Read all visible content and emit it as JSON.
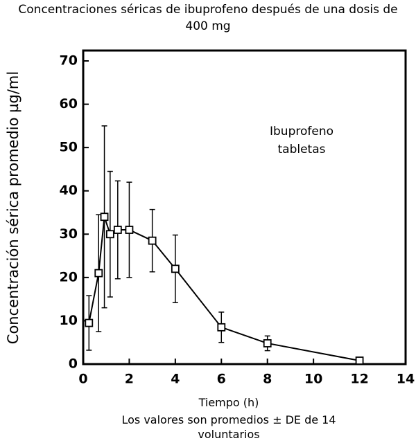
{
  "chart_data": {
    "type": "line",
    "title": "Concentraciones séricas de ibuprofeno después de una dosis de 400 mg",
    "y_label": "Concentración sérica promedio µg/ml",
    "x_label": "Tiempo (h)",
    "footnote": "Los valores son promedios ± DE de 14 voluntarios",
    "annotation": [
      "Ibuprofeno",
      "tabletas"
    ],
    "x": [
      0.25,
      0.67,
      0.92,
      1.17,
      1.5,
      2,
      3,
      4,
      6,
      8,
      12
    ],
    "series": [
      {
        "color": "#000000",
        "values": [
          9.5,
          21,
          34,
          30,
          31,
          31,
          28.5,
          22,
          8.5,
          4.8,
          0.8
        ],
        "errors": [
          6.3,
          13.5,
          21,
          14.5,
          11.3,
          11,
          7.2,
          7.8,
          3.5,
          1.7,
          0
        ]
      }
    ],
    "xlim": [
      0,
      14
    ],
    "xticks": [
      0,
      2,
      4,
      6,
      8,
      10,
      12,
      14
    ],
    "ylim": [
      0,
      72.4
    ],
    "yticks": [
      0,
      10,
      20,
      30,
      40,
      50,
      60,
      70
    ]
  }
}
